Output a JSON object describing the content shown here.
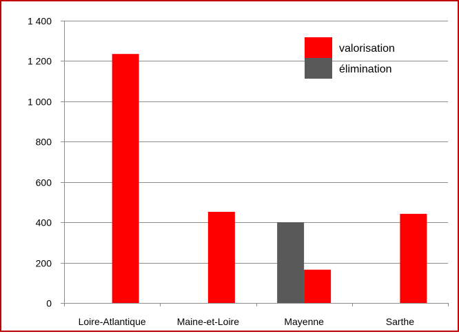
{
  "chart_data": {
    "type": "bar",
    "categories": [
      "Loire-Atlantique",
      "Maine-et-Loire",
      "Mayenne",
      "Sarthe"
    ],
    "series": [
      {
        "name": "élimination",
        "values": [
          0,
          0,
          400,
          0
        ],
        "color": "#595959"
      },
      {
        "name": "valorisation",
        "values": [
          1235,
          452,
          165,
          442
        ],
        "color": "#ff0000"
      }
    ],
    "ylim": [
      0,
      1400
    ],
    "yticks": [
      {
        "value": 0,
        "label": "0"
      },
      {
        "value": 200,
        "label": "200"
      },
      {
        "value": 400,
        "label": "400"
      },
      {
        "value": 600,
        "label": "600"
      },
      {
        "value": 800,
        "label": "800"
      },
      {
        "value": 1000,
        "label": "1 000"
      },
      {
        "value": 1200,
        "label": "1 200"
      },
      {
        "value": 1400,
        "label": "1 400"
      }
    ],
    "grid": true,
    "legend": {
      "placement": "top-right",
      "entries": [
        {
          "label": "valorisation",
          "color": "#ff0000"
        },
        {
          "label": "élimination",
          "color": "#595959"
        }
      ]
    },
    "title": "",
    "xlabel": "",
    "ylabel": ""
  },
  "colors": {
    "frame_border": "#c00000",
    "grid": "#8c8c8c",
    "axis": "#8c8c8c",
    "text": "#000000"
  }
}
